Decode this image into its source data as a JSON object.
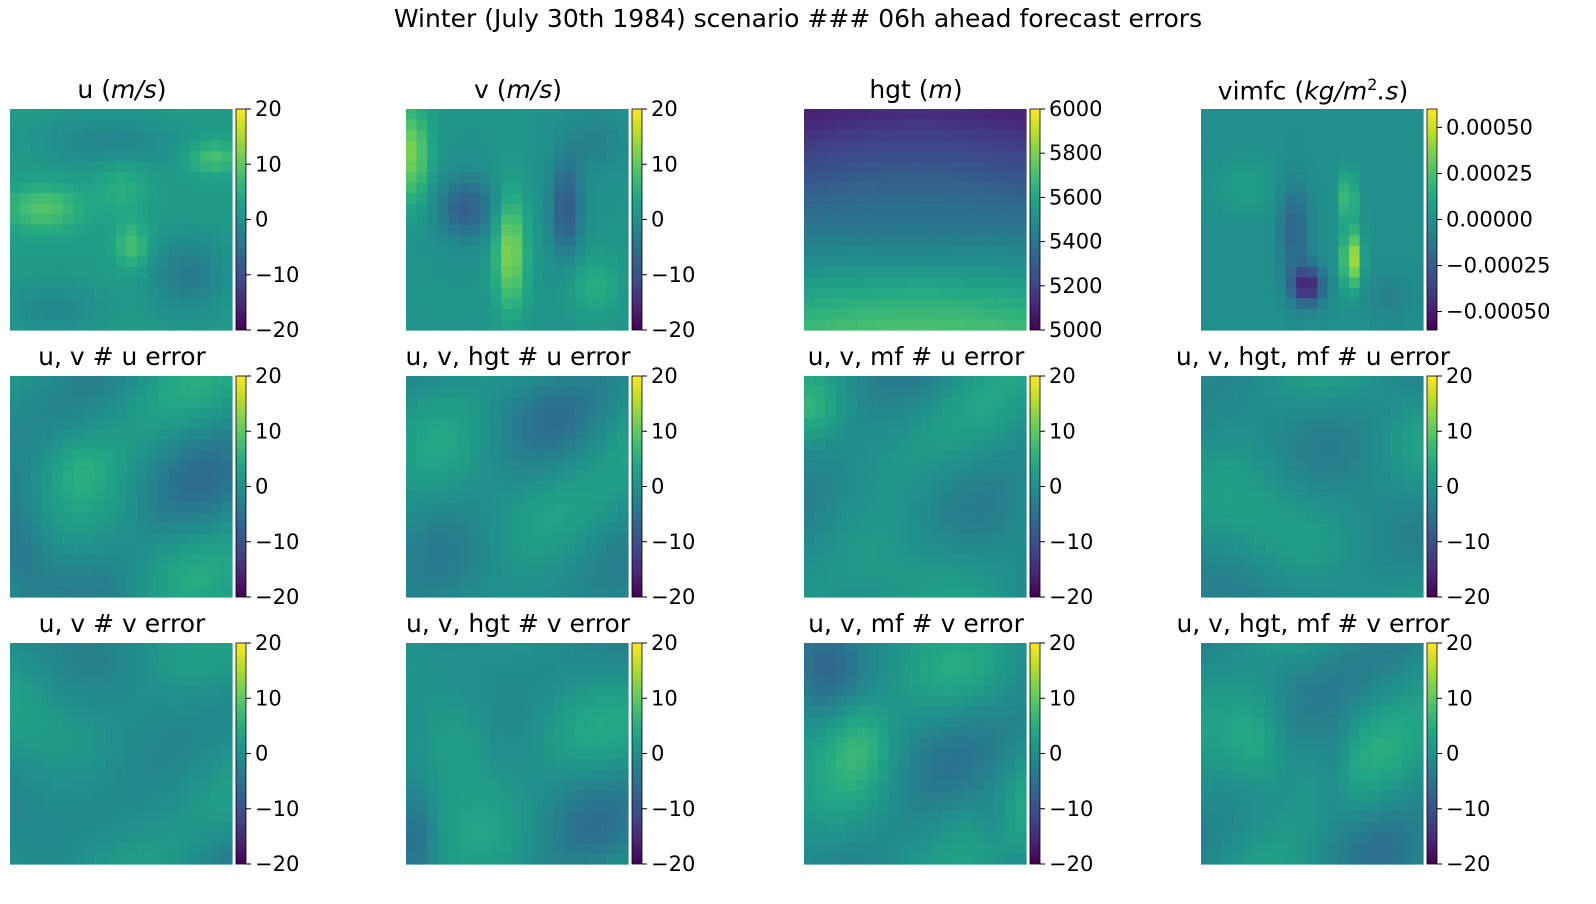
{
  "figure": {
    "suptitle": "Winter (July 30th 1984) scenario ### 06h ahead forecast errors"
  },
  "colormap": "viridis",
  "chart_data": [
    {
      "type": "heatmap",
      "title_main": "u ",
      "title_unit": "m/s",
      "title_unit_post": "",
      "clim": [
        -20,
        20
      ],
      "ticks": [
        20,
        10,
        0,
        -10,
        -20
      ],
      "tick_labels": [
        "20",
        "10",
        "0",
        "−10",
        "−20"
      ],
      "grid": [
        21,
        21
      ]
    },
    {
      "type": "heatmap",
      "title_main": "v ",
      "title_unit": "m/s",
      "title_unit_post": "",
      "clim": [
        -20,
        20
      ],
      "ticks": [
        20,
        10,
        0,
        -10,
        -20
      ],
      "tick_labels": [
        "20",
        "10",
        "0",
        "−10",
        "−20"
      ],
      "grid": [
        21,
        21
      ]
    },
    {
      "type": "heatmap",
      "title_main": "hgt ",
      "title_unit": "m",
      "title_unit_post": "",
      "clim": [
        5000,
        6000
      ],
      "ticks": [
        6000,
        5800,
        5600,
        5400,
        5200,
        5000
      ],
      "tick_labels": [
        "6000",
        "5800",
        "5600",
        "5400",
        "5200",
        "5000"
      ],
      "grid": [
        21,
        21
      ]
    },
    {
      "type": "heatmap",
      "title_main": "vimfc ",
      "title_unit": "kg/m",
      "title_sup": "2",
      "title_unit_post": ".s",
      "clim": [
        -0.0006,
        0.0006
      ],
      "ticks": [
        0.0005,
        0.00025,
        0,
        -0.00025,
        -0.0005
      ],
      "tick_labels": [
        "0.00050",
        "0.00025",
        "0.00000",
        "−0.00025",
        "−0.00050"
      ],
      "grid": [
        21,
        21
      ]
    },
    {
      "type": "heatmap",
      "title_main": "u, v # u error",
      "clim": [
        -20,
        20
      ],
      "ticks": [
        20,
        10,
        0,
        -10,
        -20
      ],
      "tick_labels": [
        "20",
        "10",
        "0",
        "−10",
        "−20"
      ],
      "grid": [
        21,
        21
      ]
    },
    {
      "type": "heatmap",
      "title_main": "u, v, hgt # u error",
      "clim": [
        -20,
        20
      ],
      "ticks": [
        20,
        10,
        0,
        -10,
        -20
      ],
      "tick_labels": [
        "20",
        "10",
        "0",
        "−10",
        "−20"
      ],
      "grid": [
        21,
        21
      ]
    },
    {
      "type": "heatmap",
      "title_main": "u, v, mf # u error",
      "clim": [
        -20,
        20
      ],
      "ticks": [
        20,
        10,
        0,
        -10,
        -20
      ],
      "tick_labels": [
        "20",
        "10",
        "0",
        "−10",
        "−20"
      ],
      "grid": [
        21,
        21
      ]
    },
    {
      "type": "heatmap",
      "title_main": "u, v, hgt, mf # u error",
      "clim": [
        -20,
        20
      ],
      "ticks": [
        20,
        10,
        0,
        -10,
        -20
      ],
      "tick_labels": [
        "20",
        "10",
        "0",
        "−10",
        "−20"
      ],
      "grid": [
        21,
        21
      ]
    },
    {
      "type": "heatmap",
      "title_main": "u, v # v error",
      "clim": [
        -20,
        20
      ],
      "ticks": [
        20,
        10,
        0,
        -10,
        -20
      ],
      "tick_labels": [
        "20",
        "10",
        "0",
        "−10",
        "−20"
      ],
      "grid": [
        21,
        21
      ]
    },
    {
      "type": "heatmap",
      "title_main": "u, v, hgt # v error",
      "clim": [
        -20,
        20
      ],
      "ticks": [
        20,
        10,
        0,
        -10,
        -20
      ],
      "tick_labels": [
        "20",
        "10",
        "0",
        "−10",
        "−20"
      ],
      "grid": [
        21,
        21
      ]
    },
    {
      "type": "heatmap",
      "title_main": "u, v, mf # v error",
      "clim": [
        -20,
        20
      ],
      "ticks": [
        20,
        10,
        0,
        -10,
        -20
      ],
      "tick_labels": [
        "20",
        "10",
        "0",
        "−10",
        "−20"
      ],
      "grid": [
        21,
        21
      ]
    },
    {
      "type": "heatmap",
      "title_main": "u, v, hgt, mf # v error",
      "clim": [
        -20,
        20
      ],
      "ticks": [
        20,
        10,
        0,
        -10,
        -20
      ],
      "tick_labels": [
        "20",
        "10",
        "0",
        "−10",
        "−20"
      ],
      "grid": [
        21,
        21
      ]
    }
  ]
}
